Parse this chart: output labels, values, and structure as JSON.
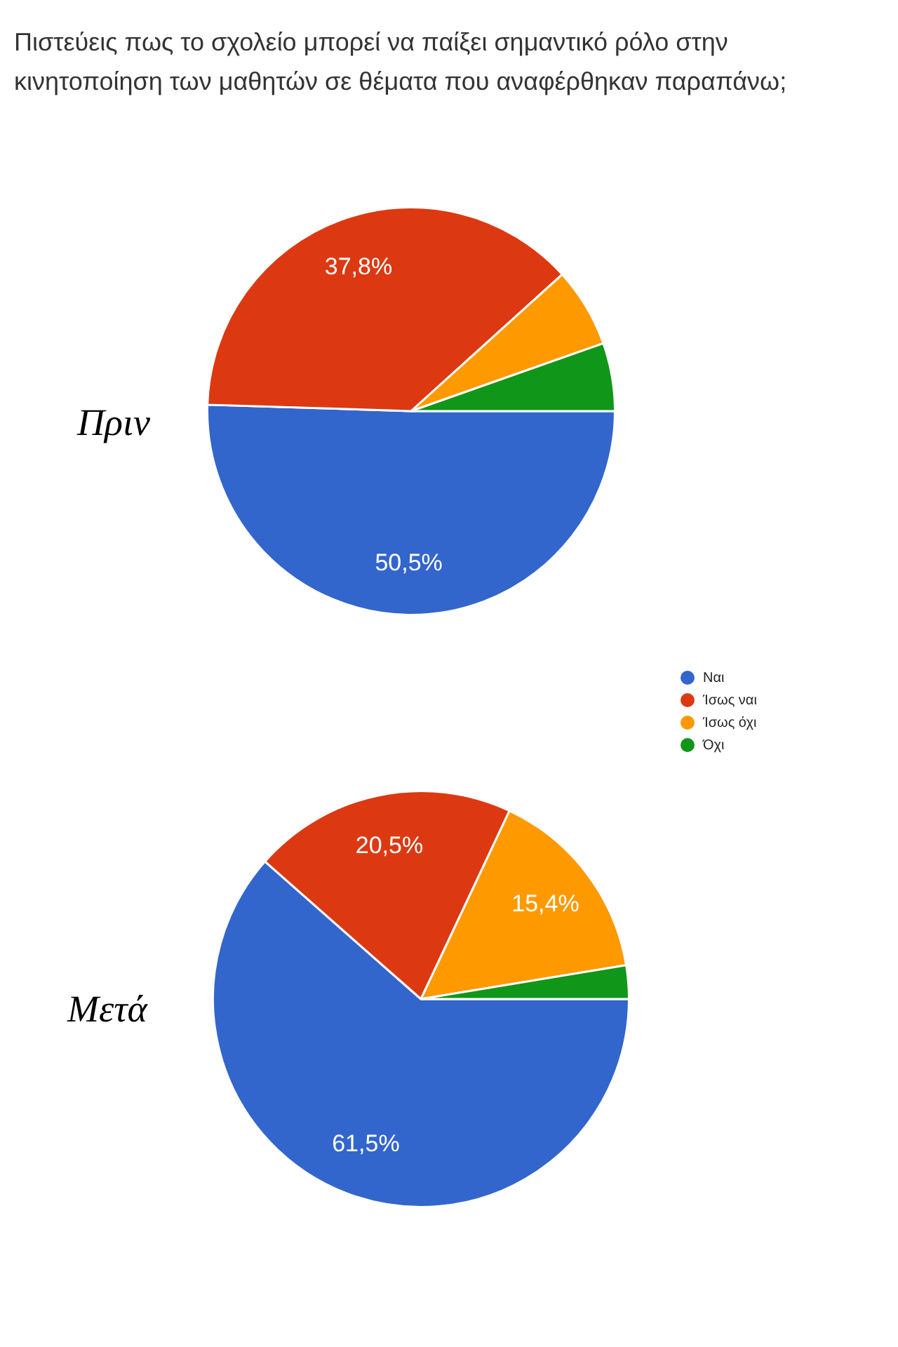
{
  "chart_data": [
    {
      "type": "pie",
      "title": "Πιστεύεις πως το σχολείο μπορεί να παίξει σημαντικό ρόλο στην κινητοποίηση των μαθητών σε θέματα που αναφέρθηκαν παραπάνω;",
      "subtitle": "Πριν",
      "categories": [
        "Ναι",
        "Ίσως ναι",
        "Ίσως όχι",
        "Όχι"
      ],
      "values": [
        50.5,
        37.8,
        6.3,
        5.4
      ],
      "value_labels": [
        "50,5%",
        "37,8%",
        null,
        null
      ],
      "colors": [
        "#3366cc",
        "#dc3912",
        "#ff9900",
        "#109618"
      ],
      "legend": "right"
    },
    {
      "type": "pie",
      "subtitle": "Μετά",
      "categories": [
        null,
        null,
        null,
        null
      ],
      "values": [
        61.5,
        20.5,
        15.4,
        2.6
      ],
      "value_labels": [
        "61,5%",
        "20,5%",
        "15,4%",
        null
      ],
      "colors": [
        "#3366cc",
        "#dc3912",
        "#ff9900",
        "#109618"
      ]
    }
  ]
}
